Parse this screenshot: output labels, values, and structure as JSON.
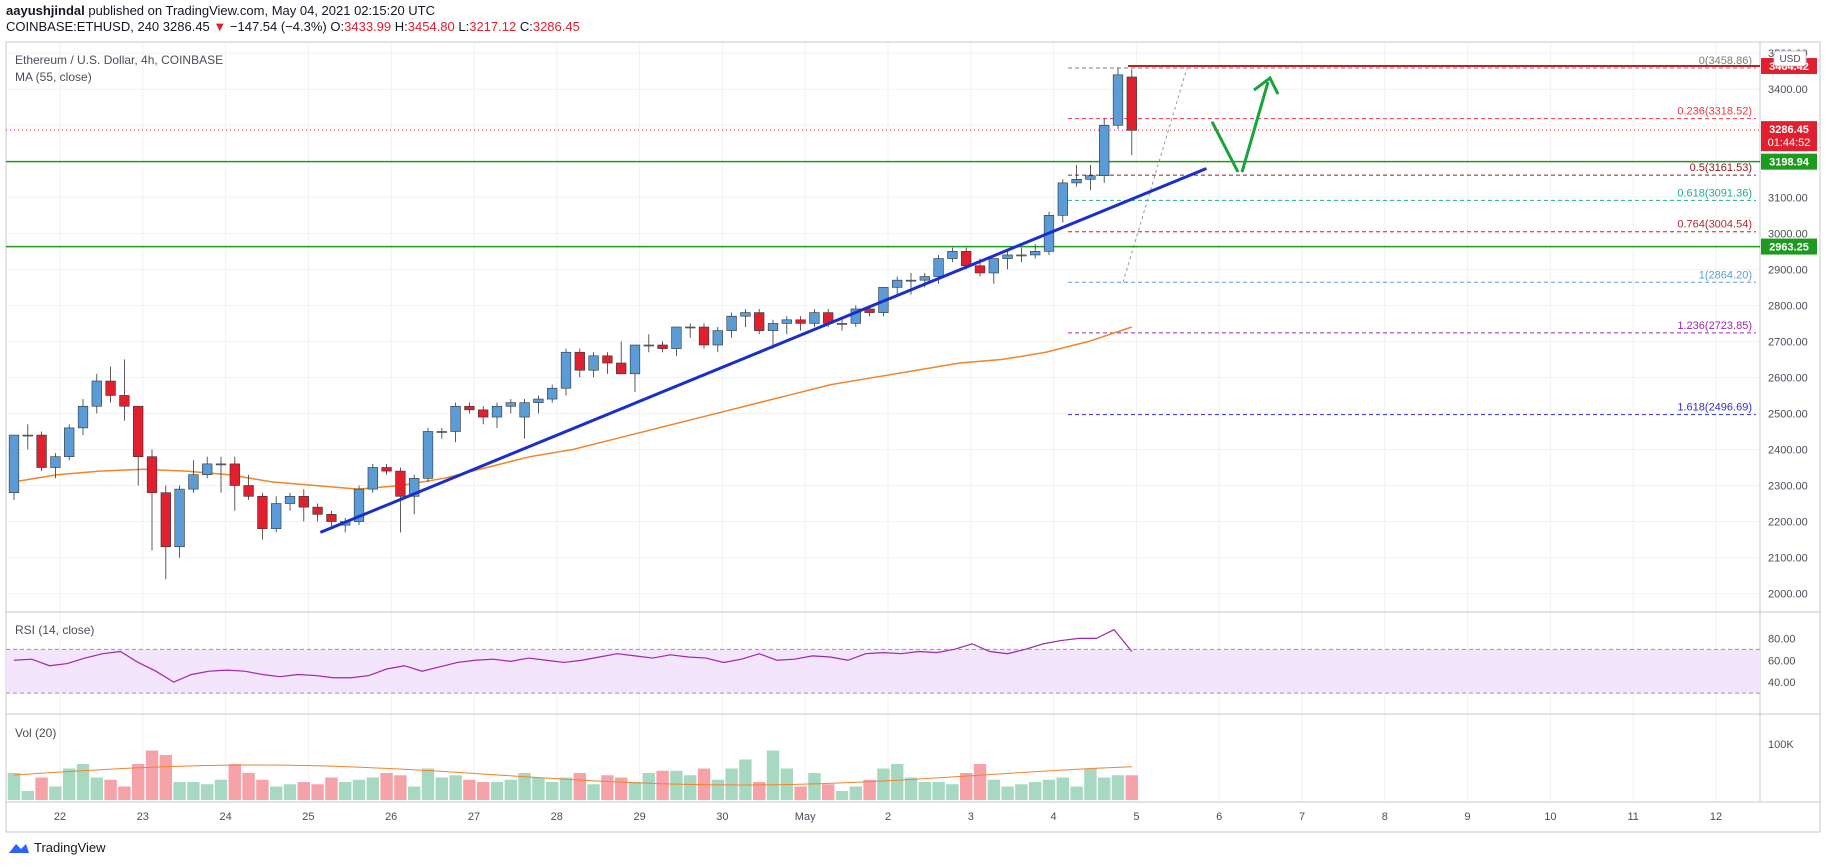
{
  "header": {
    "publisher": "aayushjindal",
    "published_text": "published on TradingView.com, May 04, 2021 02:15:20 UTC",
    "symbol_line": "COINBASE:ETHUSD, 240",
    "last": "3286.45",
    "change": "−147.54 (−4.3%)",
    "o_label": "O:",
    "o": "3433.99",
    "h_label": "H:",
    "h": "3454.80",
    "l_label": "L:",
    "l": "3217.12",
    "c_label": "C:",
    "c": "3286.45"
  },
  "main_pane": {
    "title": "Ethereum / U.S. Dollar, 4h, COINBASE",
    "ma_label": "MA (55, close)",
    "currency": "USD"
  },
  "rsi_pane": {
    "title": "RSI (14, close)",
    "ticks": [
      "80.00",
      "60.00",
      "40.00"
    ]
  },
  "vol_pane": {
    "title": "Vol (20)",
    "tick": "100K"
  },
  "footer": {
    "brand": "TradingView"
  },
  "price_labels": {
    "high": "3464.42",
    "current": "3286.45",
    "countdown": "01:44:52",
    "upper_support": "3198.94",
    "lower_support": "2963.25"
  },
  "chart_data": {
    "type": "candlestick",
    "title": "Ethereum / U.S. Dollar, 4h, COINBASE",
    "x_ticks": [
      "22",
      "23",
      "24",
      "25",
      "26",
      "27",
      "28",
      "29",
      "30",
      "May",
      "2",
      "3",
      "4",
      "5",
      "6",
      "7",
      "8",
      "9",
      "10",
      "11",
      "12"
    ],
    "y_ticks": [
      3500,
      3400,
      3300,
      3200,
      3100,
      3000,
      2900,
      2800,
      2700,
      2600,
      2500,
      2400,
      2300,
      2200,
      2100,
      2000
    ],
    "ylim": [
      1960,
      3520
    ],
    "candles": [
      [
        2280,
        2440,
        2260,
        2440
      ],
      [
        2440,
        2470,
        2400,
        2440
      ],
      [
        2440,
        2450,
        2340,
        2350
      ],
      [
        2350,
        2390,
        2320,
        2380
      ],
      [
        2380,
        2470,
        2370,
        2460
      ],
      [
        2460,
        2540,
        2440,
        2520
      ],
      [
        2520,
        2610,
        2500,
        2590
      ],
      [
        2590,
        2630,
        2530,
        2550
      ],
      [
        2550,
        2650,
        2480,
        2520
      ],
      [
        2520,
        2520,
        2300,
        2380
      ],
      [
        2380,
        2400,
        2120,
        2280
      ],
      [
        2280,
        2300,
        2040,
        2130
      ],
      [
        2130,
        2300,
        2100,
        2290
      ],
      [
        2290,
        2370,
        2280,
        2330
      ],
      [
        2330,
        2380,
        2320,
        2360
      ],
      [
        2360,
        2380,
        2280,
        2360
      ],
      [
        2360,
        2380,
        2230,
        2300
      ],
      [
        2300,
        2330,
        2260,
        2270
      ],
      [
        2270,
        2280,
        2150,
        2180
      ],
      [
        2180,
        2270,
        2170,
        2250
      ],
      [
        2250,
        2280,
        2230,
        2270
      ],
      [
        2270,
        2290,
        2200,
        2240
      ],
      [
        2240,
        2250,
        2200,
        2220
      ],
      [
        2220,
        2230,
        2180,
        2200
      ],
      [
        2190,
        2210,
        2170,
        2200
      ],
      [
        2200,
        2300,
        2190,
        2290
      ],
      [
        2290,
        2360,
        2280,
        2350
      ],
      [
        2350,
        2360,
        2330,
        2340
      ],
      [
        2340,
        2350,
        2170,
        2270
      ],
      [
        2270,
        2330,
        2220,
        2320
      ],
      [
        2320,
        2460,
        2310,
        2450
      ],
      [
        2450,
        2460,
        2430,
        2450
      ],
      [
        2450,
        2530,
        2420,
        2520
      ],
      [
        2520,
        2530,
        2500,
        2510
      ],
      [
        2510,
        2520,
        2470,
        2490
      ],
      [
        2490,
        2530,
        2460,
        2520
      ],
      [
        2520,
        2540,
        2500,
        2530
      ],
      [
        2490,
        2540,
        2430,
        2530
      ],
      [
        2530,
        2550,
        2500,
        2540
      ],
      [
        2540,
        2580,
        2530,
        2570
      ],
      [
        2570,
        2680,
        2550,
        2670
      ],
      [
        2670,
        2680,
        2600,
        2620
      ],
      [
        2620,
        2670,
        2600,
        2660
      ],
      [
        2660,
        2670,
        2610,
        2640
      ],
      [
        2640,
        2700,
        2610,
        2610
      ],
      [
        2610,
        2690,
        2560,
        2690
      ],
      [
        2690,
        2720,
        2670,
        2690
      ],
      [
        2690,
        2700,
        2670,
        2680
      ],
      [
        2680,
        2740,
        2660,
        2740
      ],
      [
        2740,
        2750,
        2710,
        2740
      ],
      [
        2740,
        2750,
        2680,
        2690
      ],
      [
        2690,
        2740,
        2670,
        2730
      ],
      [
        2730,
        2780,
        2710,
        2770
      ],
      [
        2770,
        2790,
        2740,
        2780
      ],
      [
        2780,
        2790,
        2720,
        2730
      ],
      [
        2730,
        2760,
        2680,
        2750
      ],
      [
        2750,
        2770,
        2720,
        2760
      ],
      [
        2760,
        2770,
        2730,
        2750
      ],
      [
        2750,
        2790,
        2740,
        2780
      ],
      [
        2780,
        2790,
        2740,
        2750
      ],
      [
        2750,
        2760,
        2730,
        2750
      ],
      [
        2750,
        2800,
        2740,
        2790
      ],
      [
        2790,
        2800,
        2770,
        2780
      ],
      [
        2780,
        2850,
        2770,
        2850
      ],
      [
        2850,
        2880,
        2830,
        2870
      ],
      [
        2870,
        2890,
        2830,
        2870
      ],
      [
        2870,
        2890,
        2850,
        2880
      ],
      [
        2880,
        2940,
        2860,
        2930
      ],
      [
        2930,
        2960,
        2920,
        2950
      ],
      [
        2950,
        2960,
        2900,
        2910
      ],
      [
        2910,
        2930,
        2880,
        2890
      ],
      [
        2890,
        2930,
        2860,
        2930
      ],
      [
        2930,
        2950,
        2900,
        2940
      ],
      [
        2940,
        2960,
        2920,
        2940
      ],
      [
        2940,
        2970,
        2930,
        2950
      ],
      [
        2950,
        3060,
        2940,
        3050
      ],
      [
        3050,
        3150,
        3030,
        3140
      ],
      [
        3140,
        3190,
        3130,
        3150
      ],
      [
        3150,
        3190,
        3120,
        3160
      ],
      [
        3160,
        3320,
        3140,
        3300
      ],
      [
        3300,
        3460,
        3290,
        3440
      ],
      [
        3434,
        3455,
        3217,
        3286
      ]
    ],
    "ma55": [
      2310,
      2330,
      2340,
      2345,
      2340,
      2330,
      2310,
      2300,
      2290,
      2300,
      2320,
      2350,
      2380,
      2400,
      2430,
      2460,
      2490,
      2520,
      2550,
      2580,
      2600,
      2620,
      2640,
      2650,
      2670,
      2700,
      2740
    ],
    "ma55_start_index": 0,
    "trendline": {
      "from": [
        25.2,
        2170
      ],
      "to": [
        5.7,
        3180
      ]
    },
    "support_levels": [
      3198.94,
      2963.25
    ],
    "fib_levels": [
      {
        "label": "0(3458.86)",
        "value": 3458.86,
        "color": "#787b86"
      },
      {
        "label": "0.236(3318.52)",
        "value": 3318.52,
        "color": "#f23645"
      },
      {
        "label": "0.5(3161.53)",
        "value": 3161.53,
        "color": "#8a1c2b"
      },
      {
        "label": "0.618(3091.36)",
        "value": 3091.36,
        "color": "#22ab94"
      },
      {
        "label": "0.764(3004.54)",
        "value": 3004.54,
        "color": "#b22833"
      },
      {
        "label": "1(2864.20)",
        "value": 2864.2,
        "color": "#5b9cd6"
      },
      {
        "label": "1.236(2723.85)",
        "value": 2723.85,
        "color": "#9c27b0"
      },
      {
        "label": "1.618(2496.69)",
        "value": 2496.69,
        "color": "#3030c0"
      }
    ],
    "rsi": [
      60,
      61,
      55,
      57,
      62,
      66,
      68,
      58,
      50,
      40,
      47,
      50,
      51,
      50,
      47,
      45,
      47,
      46,
      44,
      44,
      46,
      52,
      55,
      50,
      54,
      58,
      60,
      61,
      59,
      62,
      60,
      58,
      60,
      63,
      66,
      64,
      62,
      65,
      63,
      62,
      58,
      61,
      66,
      60,
      61,
      64,
      63,
      60,
      66,
      67,
      66,
      68,
      67,
      70,
      75,
      68,
      66,
      70,
      75,
      78,
      80,
      80,
      88,
      68
    ],
    "volume_up": [
      60,
      20,
      30,
      70,
      80,
      50,
      40,
      40,
      35,
      45,
      30,
      35,
      40,
      45,
      50,
      30,
      70,
      50,
      55,
      40,
      45,
      60,
      50,
      40,
      50,
      35,
      40,
      60,
      65,
      55,
      45,
      70,
      90,
      110,
      70
    ],
    "volume_down": [
      50,
      45,
      30,
      80,
      110,
      100,
      80,
      60,
      45,
      40,
      35,
      50,
      60,
      55,
      45,
      40,
      60,
      55,
      50,
      65,
      70,
      40,
      30,
      35,
      45,
      60,
      80,
      55,
      50,
      65,
      100
    ]
  },
  "colors": {
    "up": "#5b9cd6",
    "down": "#e0202e",
    "ma": "#f0852d",
    "trend": "#1a2fc9",
    "support": "#1e9a1e",
    "arrow": "#1aa33a",
    "rsi_line": "#9c27b0",
    "rsi_band": "#f3e5fb",
    "vol_up": "#a7d8c2",
    "vol_down": "#f5a3a8"
  }
}
